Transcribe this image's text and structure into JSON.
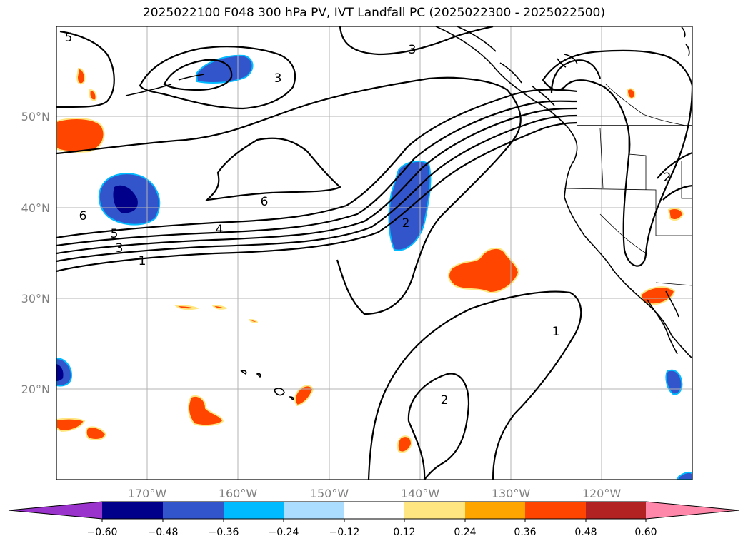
{
  "title": "2025022100 F048 300 hPa PV, IVT Landfall PC (2025022300 - 2025022500)",
  "map": {
    "lon_ticks": [
      "170°W",
      "160°W",
      "150°W",
      "140°W",
      "130°W",
      "120°W"
    ],
    "lat_ticks": [
      "50°N",
      "40°N",
      "30°N",
      "20°N"
    ],
    "gridlines": true,
    "contour_labels": [
      "5",
      "3",
      "3",
      "6",
      "6",
      "5",
      "4",
      "3",
      "2",
      "1",
      "2",
      "1",
      "2"
    ]
  },
  "colorbar": {
    "ticks": [
      "−0.60",
      "−0.48",
      "−0.36",
      "−0.24",
      "−0.12",
      "0.12",
      "0.24",
      "0.36",
      "0.48",
      "0.60"
    ],
    "colors": [
      "#9933cc",
      "#00008b",
      "#3355cc",
      "#00bbff",
      "#aaddff",
      "#ffffff",
      "#ffe680",
      "#ffa500",
      "#ff4500",
      "#b22222",
      "#ff88aa"
    ]
  }
}
